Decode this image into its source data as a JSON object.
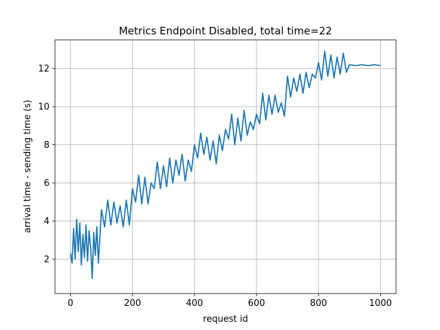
{
  "chart_data": {
    "type": "line",
    "title": "Metrics Endpoint Disabled, total time=22",
    "xlabel": "request id",
    "ylabel": "arrival time - sending time (s)",
    "xlim": [
      -50,
      1050
    ],
    "ylim": [
      0.2,
      13.5
    ],
    "xticks": [
      0,
      200,
      400,
      600,
      800,
      1000
    ],
    "yticks": [
      2,
      4,
      6,
      8,
      10,
      12
    ],
    "grid": true,
    "legend": "none",
    "series": [
      {
        "color": "#1f77b4",
        "x": [
          0,
          5,
          10,
          15,
          20,
          25,
          30,
          35,
          40,
          45,
          50,
          55,
          60,
          65,
          70,
          75,
          80,
          85,
          90,
          95,
          100,
          110,
          120,
          130,
          140,
          150,
          160,
          170,
          180,
          190,
          200,
          210,
          220,
          230,
          240,
          250,
          260,
          270,
          280,
          290,
          300,
          310,
          320,
          330,
          340,
          350,
          360,
          370,
          380,
          390,
          400,
          410,
          420,
          430,
          440,
          450,
          460,
          470,
          480,
          490,
          500,
          510,
          520,
          530,
          540,
          550,
          560,
          570,
          580,
          590,
          600,
          610,
          620,
          630,
          640,
          650,
          660,
          670,
          680,
          690,
          700,
          710,
          720,
          730,
          740,
          750,
          760,
          770,
          780,
          790,
          800,
          810,
          820,
          830,
          840,
          850,
          860,
          870,
          880,
          890,
          900,
          920,
          940,
          960,
          980,
          1000
        ],
        "y": [
          2.3,
          1.8,
          3.6,
          2.0,
          4.1,
          2.4,
          3.9,
          1.7,
          3.3,
          2.1,
          3.8,
          1.9,
          3.5,
          2.6,
          1.0,
          3.4,
          2.2,
          3.7,
          1.8,
          3.2,
          4.6,
          3.7,
          5.1,
          3.8,
          5.0,
          3.9,
          4.8,
          3.7,
          5.1,
          3.8,
          5.7,
          5.0,
          6.4,
          4.9,
          6.3,
          4.9,
          6.0,
          5.7,
          7.1,
          5.7,
          6.9,
          5.8,
          7.3,
          6.0,
          7.2,
          6.4,
          7.5,
          6.1,
          7.2,
          6.6,
          8.0,
          7.3,
          8.6,
          7.5,
          8.4,
          7.2,
          8.2,
          7.0,
          8.5,
          7.7,
          8.8,
          8.3,
          9.6,
          8.0,
          9.4,
          8.2,
          9.8,
          8.5,
          9.2,
          8.8,
          9.6,
          9.1,
          10.7,
          9.3,
          10.6,
          9.6,
          10.6,
          9.7,
          10.2,
          9.5,
          11.6,
          10.5,
          11.5,
          10.8,
          11.7,
          10.7,
          11.8,
          11.0,
          11.7,
          11.5,
          12.3,
          11.4,
          12.9,
          11.6,
          12.7,
          11.5,
          12.6,
          11.7,
          12.8,
          11.8,
          12.2,
          12.15,
          12.2,
          12.15,
          12.2,
          12.15
        ]
      }
    ]
  }
}
